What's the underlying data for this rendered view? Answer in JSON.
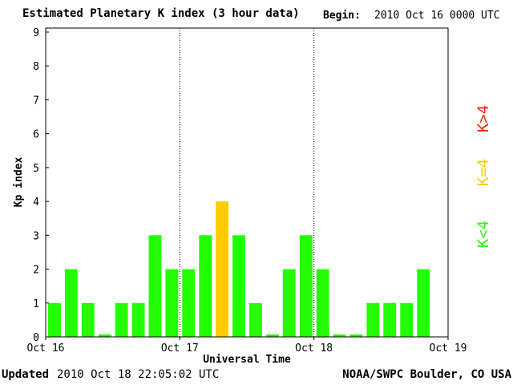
{
  "header": {
    "title": "Estimated Planetary K index (3 hour data)",
    "begin_label": "Begin:",
    "begin_value": "2010 Oct 16 0000 UTC"
  },
  "footer": {
    "updated_label": "Updated",
    "updated_value": "2010 Oct 18 22:05:02 UTC",
    "credit": "NOAA/SWPC Boulder, CO USA"
  },
  "legend": {
    "above": "K>4",
    "equal": "K=4",
    "below": "K<4",
    "colors": {
      "above": "#ff2200",
      "equal": "#ffcc00",
      "below": "#22ff00"
    }
  },
  "chart_data": {
    "type": "bar",
    "title": "Estimated Planetary K index (3 hour data)",
    "xlabel": "Universal Time",
    "ylabel": "Kp index",
    "ylim": [
      0,
      9
    ],
    "yticks": [
      "0",
      "1",
      "2",
      "3",
      "4",
      "5",
      "6",
      "7",
      "8",
      "9"
    ],
    "xticks": [
      "Oct 16",
      "Oct 17",
      "Oct 18",
      "Oct 19"
    ],
    "day_separators": [
      "Oct 17",
      "Oct 18"
    ],
    "bins_per_day": 8,
    "values": [
      1,
      2,
      1,
      0,
      1,
      1,
      3,
      2,
      2,
      3,
      4,
      3,
      1,
      0,
      2,
      3,
      2,
      0,
      0,
      1,
      1,
      1,
      2
    ],
    "colors": {
      "below4": "#22ff00",
      "equal4": "#ffcc00",
      "above4": "#ff2200"
    }
  }
}
